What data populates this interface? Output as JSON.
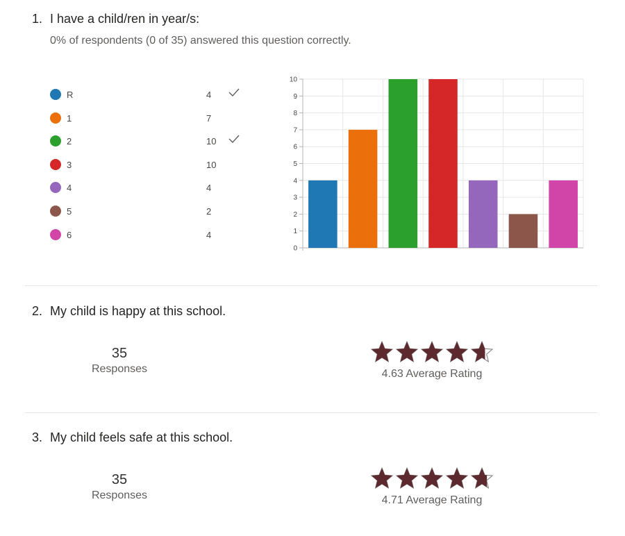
{
  "q1": {
    "number": "1.",
    "title": "I have a child/ren in year/s:",
    "subtitle": "0% of respondents (0 of 35) answered this question correctly.",
    "options": [
      {
        "label": "R",
        "count": "4",
        "correct": true,
        "color": "#1f77b4"
      },
      {
        "label": "1",
        "count": "7",
        "correct": false,
        "color": "#eb6f0a"
      },
      {
        "label": "2",
        "count": "10",
        "correct": true,
        "color": "#2ca02c"
      },
      {
        "label": "3",
        "count": "10",
        "correct": false,
        "color": "#d62728"
      },
      {
        "label": "4",
        "count": "4",
        "correct": false,
        "color": "#9467bd"
      },
      {
        "label": "5",
        "count": "2",
        "correct": false,
        "color": "#8c564b"
      },
      {
        "label": "6",
        "count": "4",
        "correct": false,
        "color": "#d245a8"
      }
    ]
  },
  "chart_data": {
    "type": "bar",
    "categories": [
      "R",
      "1",
      "2",
      "3",
      "4",
      "5",
      "6"
    ],
    "values": [
      4,
      7,
      10,
      10,
      4,
      2,
      4
    ],
    "colors": [
      "#1f77b4",
      "#eb6f0a",
      "#2ca02c",
      "#d62728",
      "#9467bd",
      "#8c564b",
      "#d245a8"
    ],
    "title": "",
    "xlabel": "",
    "ylabel": "",
    "ylim": [
      0,
      10
    ],
    "yticks": [
      "0",
      "1",
      "2",
      "3",
      "4",
      "5",
      "6",
      "7",
      "8",
      "9",
      "10"
    ],
    "grid": true,
    "legend": "left"
  },
  "q2": {
    "number": "2.",
    "title": "My child is happy at this school.",
    "responses_count": "35",
    "responses_label": "Responses",
    "average_text": "4.63 Average Rating",
    "rating_value": 4.63,
    "rating_max": 5,
    "star_color": "#5c2a2e"
  },
  "q3": {
    "number": "3.",
    "title": "My child feels safe at this school.",
    "responses_count": "35",
    "responses_label": "Responses",
    "average_text": "4.71 Average Rating",
    "rating_value": 4.71,
    "rating_max": 5,
    "star_color": "#5c2a2e"
  }
}
